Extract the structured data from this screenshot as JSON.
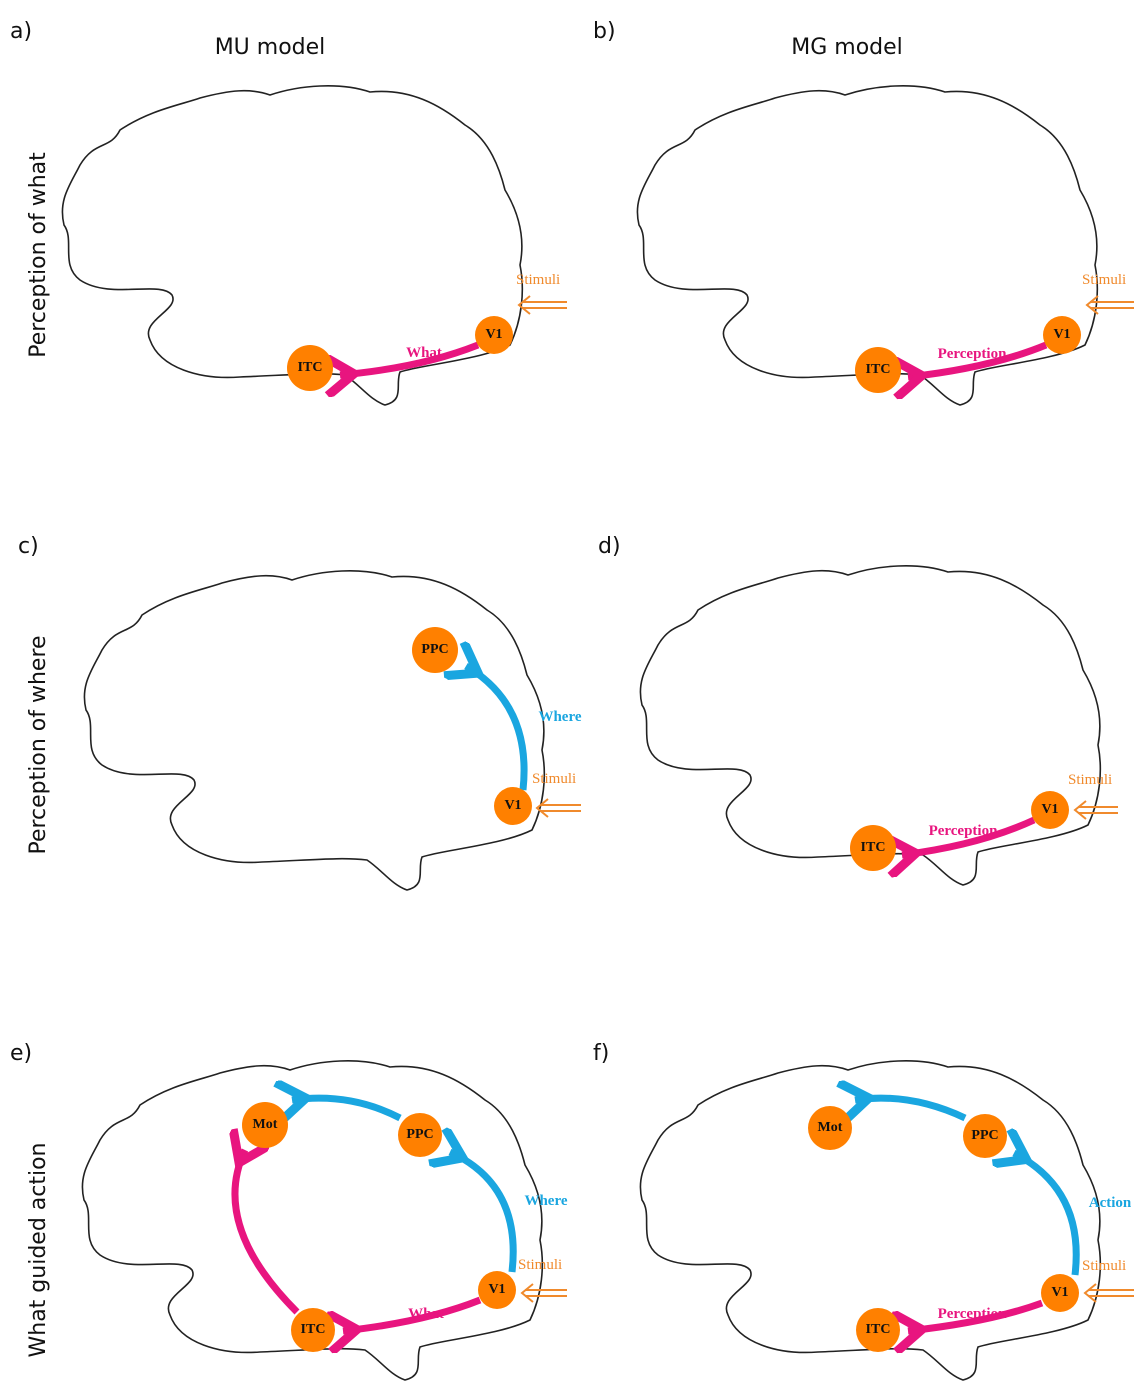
{
  "columns": [
    "MU model",
    "MG model"
  ],
  "rows": [
    "Perception of what",
    "Perception of where",
    "What guided action"
  ],
  "panels": [
    {
      "letter": "a)",
      "nodes": [
        "ITC",
        "V1"
      ],
      "arrow_labels": [
        "What"
      ],
      "stimulus": "Stimuli"
    },
    {
      "letter": "b)",
      "nodes": [
        "ITC",
        "V1"
      ],
      "arrow_labels": [
        "Perception"
      ],
      "stimulus": "Stimuli"
    },
    {
      "letter": "c)",
      "nodes": [
        "PPC",
        "V1"
      ],
      "arrow_labels": [
        "Where"
      ],
      "stimulus": "Stimuli"
    },
    {
      "letter": "d)",
      "nodes": [
        "ITC",
        "V1"
      ],
      "arrow_labels": [
        "Perception"
      ],
      "stimulus": "Stimuli"
    },
    {
      "letter": "e)",
      "nodes": [
        "Mot",
        "PPC",
        "ITC",
        "V1"
      ],
      "arrow_labels": [
        "Where",
        "What"
      ],
      "stimulus": "Stimuli"
    },
    {
      "letter": "f)",
      "nodes": [
        "Mot",
        "PPC",
        "ITC",
        "V1"
      ],
      "arrow_labels": [
        "Action",
        "Perception"
      ],
      "stimulus": "Stimuli"
    }
  ]
}
